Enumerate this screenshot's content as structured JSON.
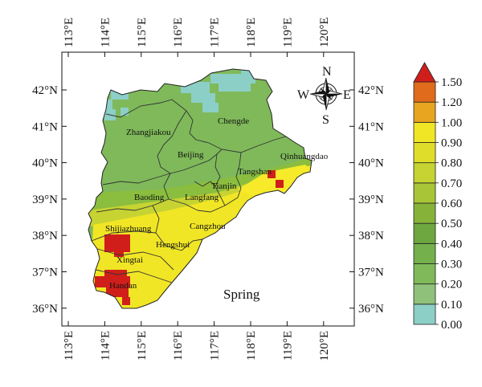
{
  "map": {
    "season": "Spring",
    "lon_ticks": [
      "113°E",
      "114°E",
      "115°E",
      "116°E",
      "117°E",
      "118°E",
      "119°E",
      "120°E"
    ],
    "lat_ticks": [
      "42°N",
      "41°N",
      "40°N",
      "39°N",
      "38°N",
      "37°N",
      "36°N"
    ],
    "cities": [
      {
        "name": "Chengde"
      },
      {
        "name": "Zhangjiakou"
      },
      {
        "name": "Qinhuangdao"
      },
      {
        "name": "Beijing"
      },
      {
        "name": "Tangshan"
      },
      {
        "name": "Tianjin"
      },
      {
        "name": "Baoding"
      },
      {
        "name": "Langfang"
      },
      {
        "name": "Cangzhou"
      },
      {
        "name": "Shijiazhuang"
      },
      {
        "name": "Hengshui"
      },
      {
        "name": "Xingtai"
      },
      {
        "name": "Handan"
      }
    ],
    "compass": {
      "n": "N",
      "s": "S",
      "e": "E",
      "w": "W"
    }
  },
  "colorbar": {
    "labels": [
      "0.00",
      "0.10",
      "0.20",
      "0.30",
      "0.40",
      "0.50",
      "0.60",
      "0.70",
      "0.80",
      "0.90",
      "1.00",
      "1.20",
      "1.50"
    ],
    "colors": [
      "#8ccfc7",
      "#8fc17a",
      "#7fb95a",
      "#74b04c",
      "#6ea63f",
      "#86b23a",
      "#a8c537",
      "#c6d332",
      "#e0dd2a",
      "#f1e625",
      "#e8a51f",
      "#e06b1c",
      "#d01f1b"
    ]
  }
}
